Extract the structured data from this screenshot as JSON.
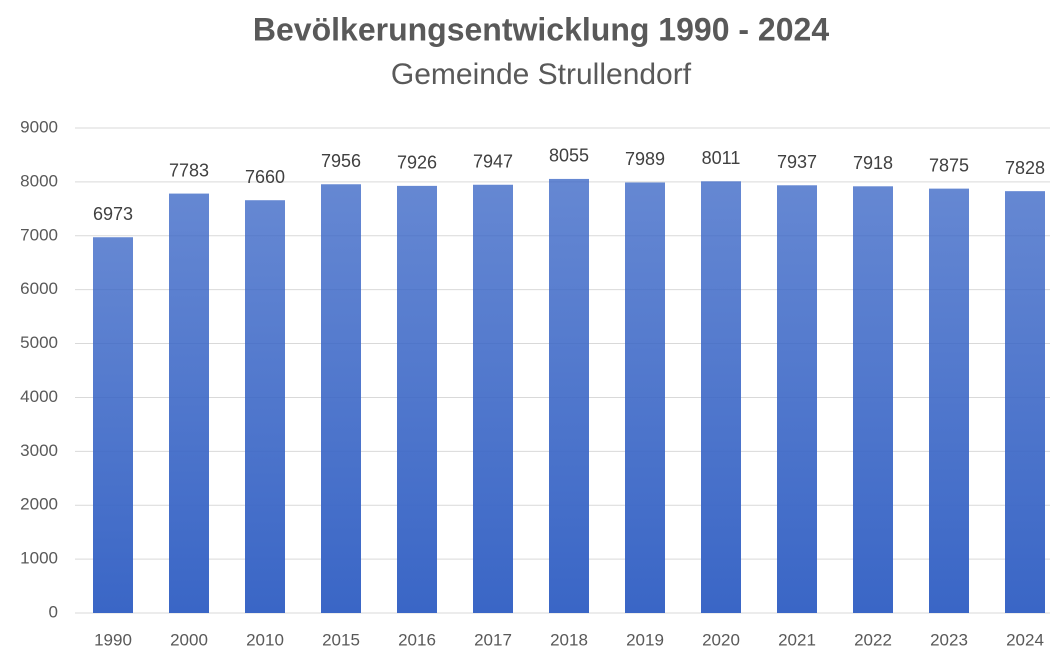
{
  "chart_data": {
    "type": "bar",
    "title": "Bevölkerungsentwicklung 1990 - 2024",
    "subtitle": "Gemeinde Strullendorf",
    "categories": [
      "1990",
      "2000",
      "2010",
      "2015",
      "2016",
      "2017",
      "2018",
      "2019",
      "2020",
      "2021",
      "2022",
      "2023",
      "2024"
    ],
    "values": [
      6973,
      7783,
      7660,
      7956,
      7926,
      7947,
      8055,
      7989,
      8011,
      7937,
      7918,
      7875,
      7828
    ],
    "color": "#3a66c6",
    "ylim": [
      0,
      9000
    ],
    "yticks": [
      0,
      1000,
      2000,
      3000,
      4000,
      5000,
      6000,
      7000,
      8000,
      9000
    ],
    "grid": true
  }
}
